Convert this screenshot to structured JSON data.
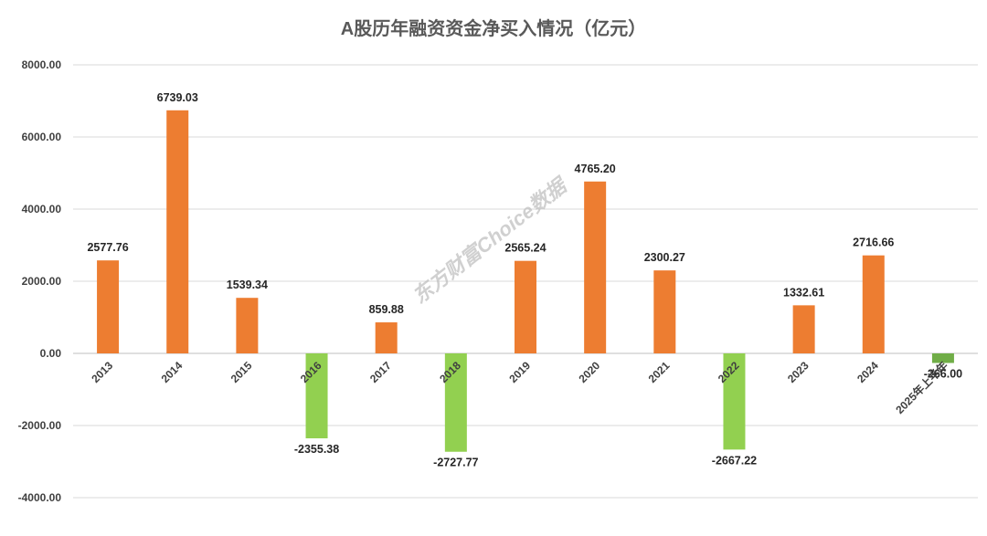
{
  "chart_data": {
    "type": "bar",
    "title": "A股历年融资资金净买入情况（亿元）",
    "xlabel": "",
    "ylabel": "",
    "categories": [
      "2013",
      "2014",
      "2015",
      "2016",
      "2017",
      "2018",
      "2019",
      "2020",
      "2021",
      "2022",
      "2023",
      "2024",
      "2025年上半年"
    ],
    "values": [
      2577.76,
      6739.03,
      1539.34,
      -2355.38,
      859.88,
      -2727.77,
      2565.24,
      4765.2,
      2300.27,
      -2667.22,
      1332.61,
      2716.66,
      -266.0
    ],
    "value_labels": [
      "2577.76",
      "6739.03",
      "1539.34",
      "-2355.38",
      "859.88",
      "-2727.77",
      "2565.24",
      "4765.20",
      "2300.27",
      "-2667.22",
      "1332.61",
      "2716.66",
      "-266.00"
    ],
    "ylim": [
      -4000,
      8000
    ],
    "yticks": [
      8000,
      6000,
      4000,
      2000,
      0,
      -2000,
      -4000
    ],
    "ytick_labels": [
      "8000.00",
      "6000.00",
      "4000.00",
      "2000.00",
      "0.00",
      "-2000.00",
      "-4000.00"
    ],
    "grid": true,
    "legend": "none",
    "colors": {
      "positive": "#ED7D31",
      "negative": "#92D050",
      "negative_partial": "#70AD47"
    },
    "bar_colors": [
      "#ED7D31",
      "#ED7D31",
      "#ED7D31",
      "#92D050",
      "#ED7D31",
      "#92D050",
      "#ED7D31",
      "#ED7D31",
      "#ED7D31",
      "#92D050",
      "#ED7D31",
      "#ED7D31",
      "#70AD47"
    ]
  },
  "watermark": "东方财富Choice数据"
}
